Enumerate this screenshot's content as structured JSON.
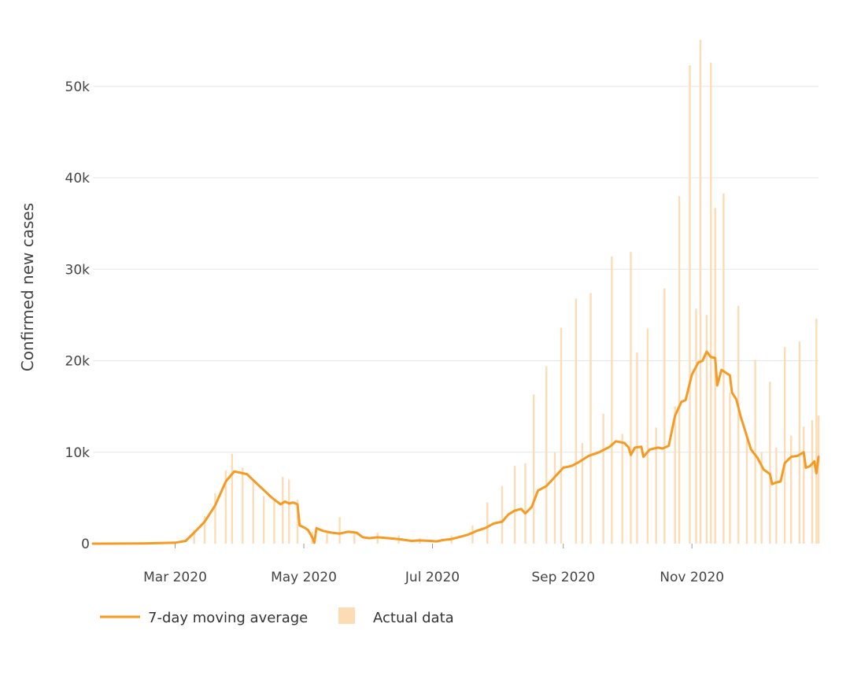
{
  "chart_data": {
    "type": "bar",
    "title": "",
    "ylabel": "Confirmed new cases",
    "xlabel": "",
    "ylim": [
      0,
      56000
    ],
    "x_start": "2020-01-22",
    "x_end": "2020-12-31",
    "y_ticks": [
      {
        "value": 0,
        "label": "0"
      },
      {
        "value": 10000,
        "label": "10k"
      },
      {
        "value": 20000,
        "label": "20k"
      },
      {
        "value": 30000,
        "label": "30k"
      },
      {
        "value": 40000,
        "label": "40k"
      },
      {
        "value": 50000,
        "label": "50k"
      }
    ],
    "x_ticks": [
      {
        "date": "2020-03-01",
        "label": "Mar 2020"
      },
      {
        "date": "2020-05-01",
        "label": "May 2020"
      },
      {
        "date": "2020-07-01",
        "label": "Jul 2020"
      },
      {
        "date": "2020-09-01",
        "label": "Sep 2020"
      },
      {
        "date": "2020-11-01",
        "label": "Nov 2020"
      }
    ],
    "colors": {
      "line": "#f59a23",
      "bars": "#fcdcb5",
      "grid": "#e6e6e6",
      "text": "#444444"
    },
    "series": [
      {
        "name": "7-day moving average",
        "kind": "line",
        "points": [
          [
            "2020-01-22",
            0
          ],
          [
            "2020-02-15",
            20
          ],
          [
            "2020-03-01",
            100
          ],
          [
            "2020-03-06",
            300
          ],
          [
            "2020-03-10",
            1200
          ],
          [
            "2020-03-15",
            2400
          ],
          [
            "2020-03-20",
            4200
          ],
          [
            "2020-03-25",
            6800
          ],
          [
            "2020-03-29",
            7900
          ],
          [
            "2020-04-04",
            7600
          ],
          [
            "2020-04-10",
            6300
          ],
          [
            "2020-04-16",
            5000
          ],
          [
            "2020-04-20",
            4300
          ],
          [
            "2020-04-22",
            4600
          ],
          [
            "2020-04-24",
            4400
          ],
          [
            "2020-04-26",
            4500
          ],
          [
            "2020-04-28",
            4300
          ],
          [
            "2020-04-29",
            2000
          ],
          [
            "2020-05-01",
            1800
          ],
          [
            "2020-05-03",
            1500
          ],
          [
            "2020-05-05",
            700
          ],
          [
            "2020-05-06",
            100
          ],
          [
            "2020-05-07",
            1700
          ],
          [
            "2020-05-10",
            1400
          ],
          [
            "2020-05-14",
            1200
          ],
          [
            "2020-05-18",
            1100
          ],
          [
            "2020-05-22",
            1300
          ],
          [
            "2020-05-26",
            1200
          ],
          [
            "2020-05-29",
            700
          ],
          [
            "2020-06-01",
            600
          ],
          [
            "2020-06-05",
            700
          ],
          [
            "2020-06-10",
            600
          ],
          [
            "2020-06-15",
            500
          ],
          [
            "2020-06-18",
            400
          ],
          [
            "2020-06-21",
            300
          ],
          [
            "2020-06-25",
            350
          ],
          [
            "2020-06-30",
            300
          ],
          [
            "2020-07-03",
            250
          ],
          [
            "2020-07-06",
            400
          ],
          [
            "2020-07-10",
            500
          ],
          [
            "2020-07-15",
            800
          ],
          [
            "2020-07-18",
            1000
          ],
          [
            "2020-07-22",
            1400
          ],
          [
            "2020-07-26",
            1700
          ],
          [
            "2020-07-30",
            2200
          ],
          [
            "2020-08-03",
            2400
          ],
          [
            "2020-08-06",
            3200
          ],
          [
            "2020-08-09",
            3600
          ],
          [
            "2020-08-12",
            3800
          ],
          [
            "2020-08-14",
            3300
          ],
          [
            "2020-08-17",
            4000
          ],
          [
            "2020-08-20",
            5800
          ],
          [
            "2020-08-24",
            6300
          ],
          [
            "2020-08-28",
            7300
          ],
          [
            "2020-09-01",
            8300
          ],
          [
            "2020-09-05",
            8500
          ],
          [
            "2020-09-09",
            9000
          ],
          [
            "2020-09-13",
            9600
          ],
          [
            "2020-09-18",
            10000
          ],
          [
            "2020-09-23",
            10600
          ],
          [
            "2020-09-26",
            11200
          ],
          [
            "2020-09-30",
            11000
          ],
          [
            "2020-10-02",
            10500
          ],
          [
            "2020-10-03",
            9700
          ],
          [
            "2020-10-05",
            10500
          ],
          [
            "2020-10-08",
            10600
          ],
          [
            "2020-10-09",
            9500
          ],
          [
            "2020-10-12",
            10300
          ],
          [
            "2020-10-16",
            10500
          ],
          [
            "2020-10-18",
            10400
          ],
          [
            "2020-10-21",
            10700
          ],
          [
            "2020-10-24",
            14000
          ],
          [
            "2020-10-27",
            15500
          ],
          [
            "2020-10-29",
            15700
          ],
          [
            "2020-11-01",
            18500
          ],
          [
            "2020-11-04",
            19800
          ],
          [
            "2020-11-06",
            20000
          ],
          [
            "2020-11-08",
            21000
          ],
          [
            "2020-11-10",
            20400
          ],
          [
            "2020-11-12",
            20300
          ],
          [
            "2020-11-13",
            17300
          ],
          [
            "2020-11-15",
            19000
          ],
          [
            "2020-11-17",
            18700
          ],
          [
            "2020-11-19",
            18400
          ],
          [
            "2020-11-20",
            16500
          ],
          [
            "2020-11-22",
            15800
          ],
          [
            "2020-11-24",
            14000
          ],
          [
            "2020-11-26",
            12500
          ],
          [
            "2020-11-29",
            10300
          ],
          [
            "2020-12-02",
            9400
          ],
          [
            "2020-12-05",
            8100
          ],
          [
            "2020-12-08",
            7600
          ],
          [
            "2020-12-09",
            6500
          ],
          [
            "2020-12-11",
            6700
          ],
          [
            "2020-12-13",
            6800
          ],
          [
            "2020-12-15",
            8800
          ],
          [
            "2020-12-18",
            9500
          ],
          [
            "2020-12-21",
            9600
          ],
          [
            "2020-12-24",
            10000
          ],
          [
            "2020-12-25",
            8300
          ],
          [
            "2020-12-27",
            8500
          ],
          [
            "2020-12-29",
            9000
          ],
          [
            "2020-12-30",
            7700
          ],
          [
            "2020-12-31",
            9500
          ]
        ]
      },
      {
        "name": "Actual data",
        "kind": "bar",
        "points": [
          [
            "2020-03-10",
            1500
          ],
          [
            "2020-03-15",
            3000
          ],
          [
            "2020-03-20",
            5500
          ],
          [
            "2020-03-25",
            8000
          ],
          [
            "2020-03-28",
            9800
          ],
          [
            "2020-04-02",
            8300
          ],
          [
            "2020-04-07",
            6900
          ],
          [
            "2020-04-12",
            5200
          ],
          [
            "2020-04-17",
            4800
          ],
          [
            "2020-04-21",
            7300
          ],
          [
            "2020-04-24",
            7000
          ],
          [
            "2020-04-28",
            4800
          ],
          [
            "2020-05-05",
            1300
          ],
          [
            "2020-05-12",
            1200
          ],
          [
            "2020-05-18",
            2900
          ],
          [
            "2020-05-25",
            1300
          ],
          [
            "2020-06-05",
            1200
          ],
          [
            "2020-06-15",
            900
          ],
          [
            "2020-06-25",
            600
          ],
          [
            "2020-07-10",
            900
          ],
          [
            "2020-07-20",
            2000
          ],
          [
            "2020-07-27",
            4500
          ],
          [
            "2020-08-03",
            6300
          ],
          [
            "2020-08-09",
            8500
          ],
          [
            "2020-08-14",
            8800
          ],
          [
            "2020-08-18",
            16300
          ],
          [
            "2020-08-24",
            19400
          ],
          [
            "2020-08-28",
            10000
          ],
          [
            "2020-08-31",
            23600
          ],
          [
            "2020-09-07",
            26800
          ],
          [
            "2020-09-10",
            11000
          ],
          [
            "2020-09-14",
            27400
          ],
          [
            "2020-09-20",
            14200
          ],
          [
            "2020-09-24",
            31400
          ],
          [
            "2020-09-29",
            12000
          ],
          [
            "2020-10-03",
            31900
          ],
          [
            "2020-10-06",
            20900
          ],
          [
            "2020-10-11",
            23500
          ],
          [
            "2020-10-15",
            12700
          ],
          [
            "2020-10-19",
            27900
          ],
          [
            "2020-10-24",
            15000
          ],
          [
            "2020-10-26",
            38000
          ],
          [
            "2020-10-31",
            52300
          ],
          [
            "2020-11-03",
            25700
          ],
          [
            "2020-11-05",
            55100
          ],
          [
            "2020-11-08",
            25000
          ],
          [
            "2020-11-10",
            52600
          ],
          [
            "2020-11-12",
            36700
          ],
          [
            "2020-11-16",
            38300
          ],
          [
            "2020-11-19",
            16500
          ],
          [
            "2020-11-23",
            26000
          ],
          [
            "2020-11-27",
            12100
          ],
          [
            "2020-12-01",
            20100
          ],
          [
            "2020-12-04",
            10000
          ],
          [
            "2020-12-08",
            17700
          ],
          [
            "2020-12-11",
            10500
          ],
          [
            "2020-12-15",
            21500
          ],
          [
            "2020-12-18",
            11800
          ],
          [
            "2020-12-22",
            22100
          ],
          [
            "2020-12-24",
            12800
          ],
          [
            "2020-12-28",
            13500
          ],
          [
            "2020-12-30",
            24600
          ],
          [
            "2020-12-31",
            14000
          ]
        ]
      }
    ],
    "legend": {
      "position": "bottom-left",
      "items": [
        {
          "label": "7-day moving average",
          "symbol": "line"
        },
        {
          "label": "Actual data",
          "symbol": "box"
        }
      ]
    }
  }
}
